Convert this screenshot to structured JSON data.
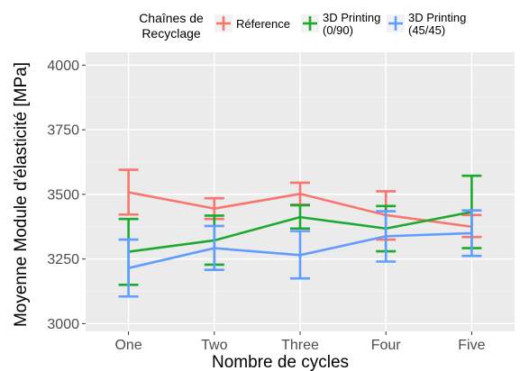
{
  "chart_data": {
    "type": "line",
    "categories": [
      "One",
      "Two",
      "Three",
      "Four",
      "Five"
    ],
    "xlabel": "Nombre de cycles",
    "ylabel": "Moyenne Module d'élasticité [MPa]",
    "ylim": [
      2970,
      4050
    ],
    "yticks": [
      3000,
      3250,
      3500,
      3750,
      4000
    ],
    "ytick_labels": [
      "3000",
      "3250",
      "3500",
      "3750",
      "4000"
    ],
    "grid": true,
    "legend": {
      "title_lines": [
        "Chaînes de",
        "Recyclage"
      ],
      "position": "top"
    },
    "series": [
      {
        "name": "Réference",
        "label_lines": [
          "Réference"
        ],
        "color": "#F8766D",
        "values": [
          3508,
          3445,
          3502,
          3420,
          3375
        ],
        "err_low": [
          3422,
          3405,
          3460,
          3325,
          3335
        ],
        "err_high": [
          3595,
          3485,
          3545,
          3512,
          3420
        ]
      },
      {
        "name": "3D Printing (0/90)",
        "label_lines": [
          "3D Printing",
          "(0/90)"
        ],
        "color": "#1BAA2F",
        "values": [
          3278,
          3322,
          3412,
          3368,
          3432
        ],
        "err_low": [
          3150,
          3228,
          3368,
          3280,
          3292
        ],
        "err_high": [
          3405,
          3418,
          3458,
          3455,
          3572
        ]
      },
      {
        "name": "3D Printing (45/45)",
        "label_lines": [
          "3D Printing",
          "(45/45)"
        ],
        "color": "#619CFF",
        "values": [
          3215,
          3292,
          3265,
          3338,
          3350
        ],
        "err_low": [
          3105,
          3208,
          3175,
          3240,
          3262
        ],
        "err_high": [
          3325,
          3378,
          3358,
          3435,
          3438
        ]
      }
    ]
  }
}
